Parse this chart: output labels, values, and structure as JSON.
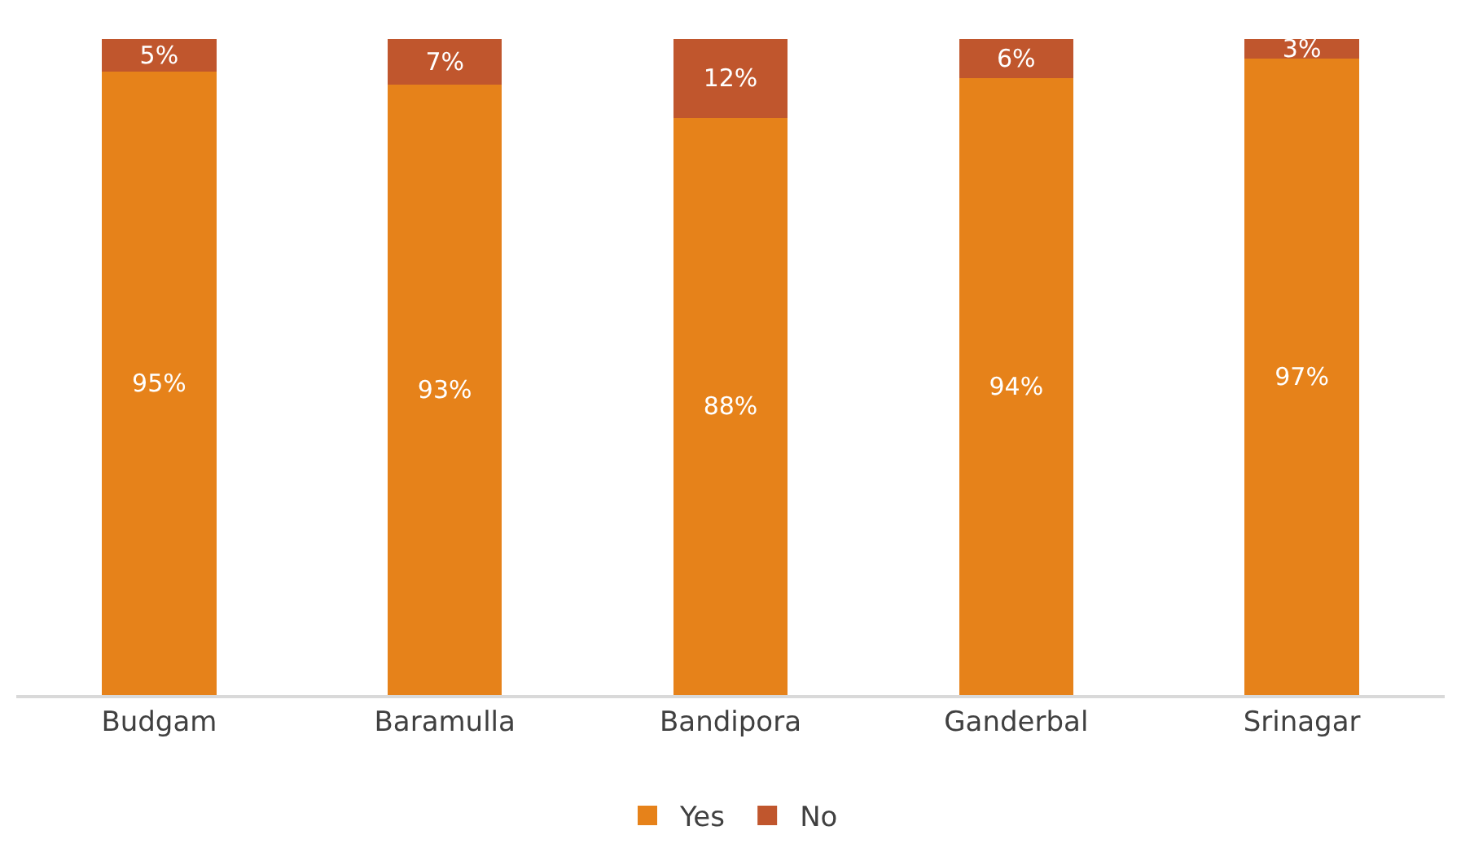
{
  "chart_data": {
    "type": "bar",
    "stacked": true,
    "categories": [
      "Budgam",
      "Baramulla",
      "Bandipora",
      "Ganderbal",
      "Srinagar"
    ],
    "series": [
      {
        "name": "Yes",
        "color": "#e6821a",
        "values": [
          95,
          93,
          88,
          94,
          97
        ],
        "value_labels": [
          "95%",
          "93%",
          "88%",
          "94%",
          "97%"
        ]
      },
      {
        "name": "No",
        "color": "#c0562d",
        "values": [
          5,
          7,
          12,
          6,
          3
        ],
        "value_labels": [
          "5%",
          "7%",
          "12%",
          "6%",
          "3%"
        ]
      }
    ],
    "ylim": [
      0,
      100
    ],
    "grid": false,
    "legend": "bottom"
  }
}
